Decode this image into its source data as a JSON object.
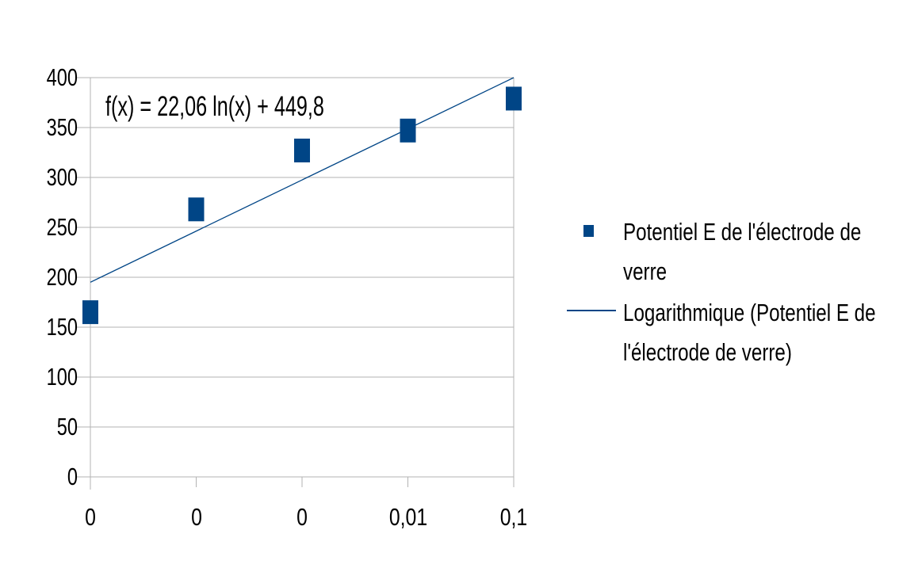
{
  "page": {
    "background": "#ffffff"
  },
  "chart_data": {
    "type": "scatter",
    "title": "",
    "xlabel": "",
    "ylabel": "",
    "x_tick_labels": [
      "0",
      "0",
      "0",
      "0,01",
      "0,1"
    ],
    "y_tick_labels": [
      "400",
      "350",
      "300",
      "250",
      "200",
      "150",
      "100",
      "50",
      "0"
    ],
    "ylim": [
      0,
      400
    ],
    "y_step": 50,
    "grid": "horizontal",
    "legend_position": "right",
    "series": [
      {
        "name": "Potentiel E de l'électrode de verre",
        "marker": "square",
        "values": [
          165,
          268,
          327,
          347,
          379
        ]
      }
    ],
    "trendline": {
      "name": "Logarithmique (Potentiel E de l'électrode de verre)",
      "kind": "logarithmic",
      "equation_label": "f(x) = 22,06 ln(x) + 449,8",
      "start_value": 195,
      "end_value": 400
    },
    "colors": {
      "series": "#004586",
      "trend": "#0f4f8a",
      "grid": "#b3b3b3",
      "text": "#000000"
    }
  },
  "legend": {
    "items": [
      {
        "marker": "square-icon",
        "lines": [
          "Potentiel E de l'électrode de",
          "verre"
        ]
      },
      {
        "marker": "line-icon",
        "lines": [
          "Logarithmique (Potentiel E de",
          "l'électrode de verre)"
        ]
      }
    ]
  }
}
